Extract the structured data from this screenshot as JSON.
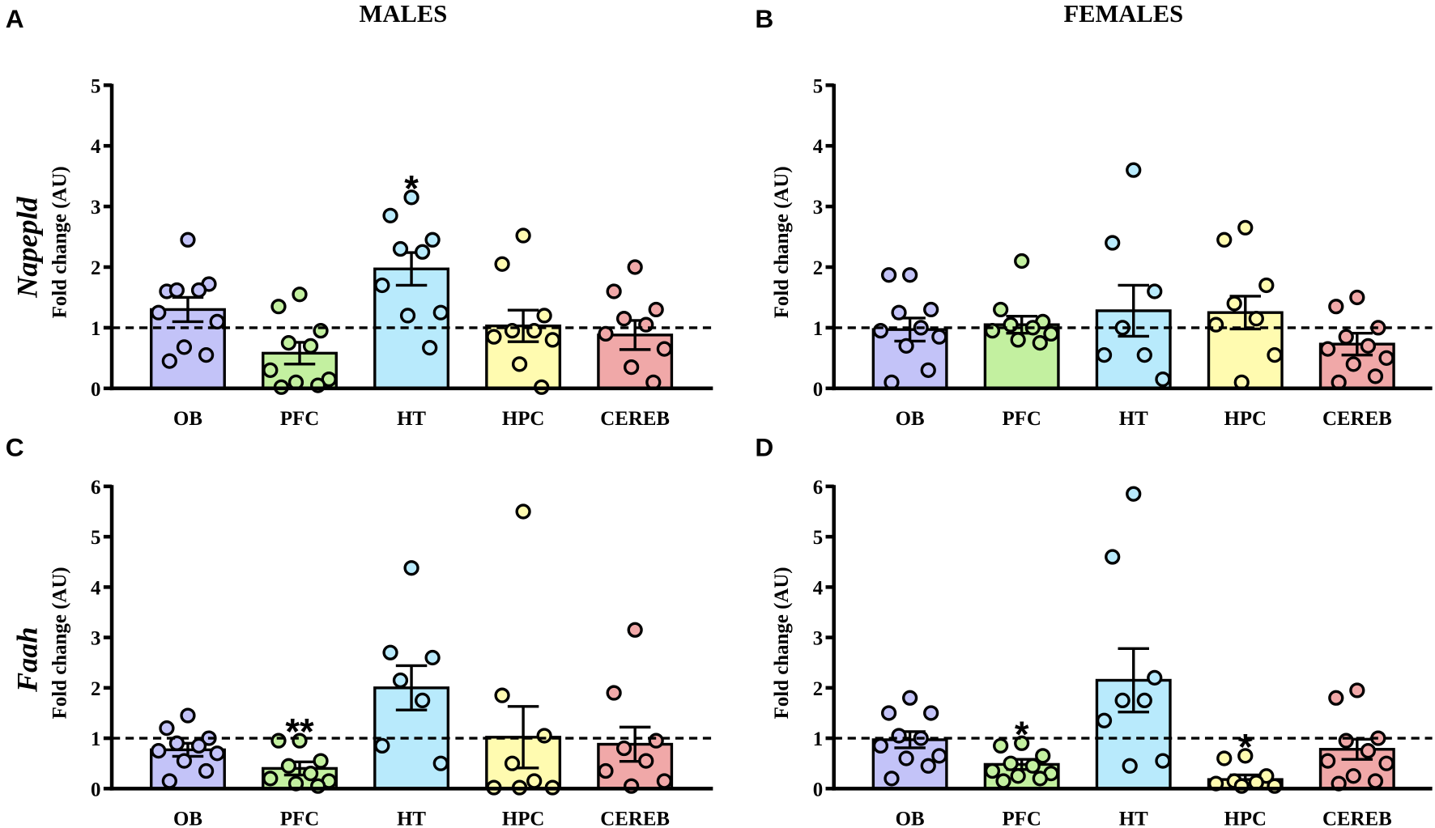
{
  "titles": {
    "males": "MALES",
    "females": "FEMALES"
  },
  "genes": {
    "row1": "Napepld",
    "row2": "Faah"
  },
  "colors": {
    "OB": "#c3c3f8",
    "PFC": "#c3f0a0",
    "HT": "#b8eafc",
    "HPC": "#fffbb0",
    "CEREB": "#f0a8a8"
  },
  "chart_data": [
    {
      "type": "bar",
      "panel": "A",
      "title": "MALES",
      "gene": "Napepld",
      "ylabel": "Fold change (AU)",
      "ylim": [
        0,
        5
      ],
      "yticks": [
        "0",
        "1",
        "2",
        "3",
        "4",
        "5"
      ],
      "reference_line": 1,
      "categories": [
        "OB",
        "PFC",
        "HT",
        "HPC",
        "CEREB"
      ],
      "means": [
        1.3,
        0.58,
        1.97,
        1.03,
        0.88
      ],
      "sem": [
        0.2,
        0.18,
        0.27,
        0.26,
        0.24
      ],
      "points": [
        [
          2.45,
          1.6,
          1.72,
          1.62,
          1.62,
          1.25,
          1.1,
          0.68,
          0.55,
          0.45
        ],
        [
          1.55,
          1.35,
          0.95,
          0.75,
          0.7,
          0.3,
          0.15,
          0.1,
          0.05,
          0.02
        ],
        [
          3.15,
          2.85,
          2.45,
          2.3,
          2.25,
          1.7,
          1.25,
          1.2,
          0.67
        ],
        [
          2.52,
          2.05,
          1.2,
          0.95,
          0.95,
          0.85,
          0.8,
          0.4,
          0.02
        ],
        [
          2.0,
          1.6,
          1.3,
          1.15,
          1.05,
          0.9,
          0.65,
          0.35,
          0.1
        ]
      ],
      "significance": [
        "",
        "",
        "*",
        "",
        ""
      ]
    },
    {
      "type": "bar",
      "panel": "B",
      "title": "FEMALES",
      "gene": "Napepld",
      "ylabel": "Fold change (AU)",
      "ylim": [
        0,
        5
      ],
      "yticks": [
        "0",
        "1",
        "2",
        "3",
        "4",
        "5"
      ],
      "reference_line": 1,
      "categories": [
        "OB",
        "PFC",
        "HT",
        "HPC",
        "CEREB"
      ],
      "means": [
        0.97,
        1.05,
        1.28,
        1.25,
        0.73
      ],
      "sem": [
        0.19,
        0.14,
        0.42,
        0.27,
        0.18
      ],
      "points": [
        [
          1.87,
          1.87,
          1.3,
          1.25,
          1.0,
          0.95,
          0.85,
          0.7,
          0.3,
          0.1
        ],
        [
          2.1,
          1.3,
          1.1,
          1.05,
          1.0,
          0.95,
          0.9,
          0.8,
          0.75
        ],
        [
          3.6,
          2.4,
          1.6,
          1.0,
          0.55,
          0.55,
          0.15
        ],
        [
          2.65,
          2.45,
          1.7,
          1.4,
          1.15,
          1.05,
          0.55,
          0.1
        ],
        [
          1.5,
          1.35,
          1.0,
          0.85,
          0.7,
          0.65,
          0.5,
          0.4,
          0.2,
          0.1
        ]
      ],
      "significance": [
        "",
        "",
        "",
        "",
        ""
      ]
    },
    {
      "type": "bar",
      "panel": "C",
      "title": "MALES",
      "gene": "Faah",
      "ylabel": "Fold change (AU)",
      "ylim": [
        0,
        6
      ],
      "yticks": [
        "0",
        "1",
        "2",
        "3",
        "4",
        "5",
        "6"
      ],
      "reference_line": 1,
      "categories": [
        "OB",
        "PFC",
        "HT",
        "HPC",
        "CEREB"
      ],
      "means": [
        0.77,
        0.4,
        2.0,
        1.02,
        0.88
      ],
      "sem": [
        0.13,
        0.13,
        0.44,
        0.61,
        0.34
      ],
      "points": [
        [
          1.45,
          1.2,
          1.0,
          0.9,
          0.85,
          0.75,
          0.7,
          0.55,
          0.35,
          0.15
        ],
        [
          0.95,
          0.95,
          0.55,
          0.45,
          0.3,
          0.2,
          0.15,
          0.1,
          0.05
        ],
        [
          4.38,
          2.7,
          2.6,
          2.15,
          1.75,
          0.85,
          0.5
        ],
        [
          5.5,
          1.85,
          1.05,
          0.5,
          0.15,
          0.02,
          0.02,
          0.02
        ],
        [
          3.15,
          1.9,
          0.95,
          0.8,
          0.55,
          0.35,
          0.15,
          0.05
        ]
      ],
      "significance": [
        "",
        "**",
        "",
        "",
        ""
      ]
    },
    {
      "type": "bar",
      "panel": "D",
      "title": "FEMALES",
      "gene": "Faah",
      "ylabel": "Fold change (AU)",
      "ylim": [
        0,
        6
      ],
      "yticks": [
        "0",
        "1",
        "2",
        "3",
        "4",
        "5",
        "6"
      ],
      "reference_line": 1,
      "categories": [
        "OB",
        "PFC",
        "HT",
        "HPC",
        "CEREB"
      ],
      "means": [
        0.97,
        0.48,
        2.15,
        0.18,
        0.78
      ],
      "sem": [
        0.16,
        0.1,
        0.63,
        0.09,
        0.2
      ],
      "points": [
        [
          1.8,
          1.5,
          1.5,
          1.05,
          1.0,
          0.85,
          0.65,
          0.6,
          0.45,
          0.2
        ],
        [
          0.9,
          0.85,
          0.65,
          0.5,
          0.45,
          0.35,
          0.3,
          0.25,
          0.2,
          0.15
        ],
        [
          5.85,
          4.6,
          2.2,
          1.75,
          1.75,
          1.35,
          0.55,
          0.45
        ],
        [
          0.65,
          0.6,
          0.25,
          0.15,
          0.12,
          0.1,
          0.05,
          0.05
        ],
        [
          1.95,
          1.8,
          1.0,
          0.95,
          0.75,
          0.55,
          0.5,
          0.25,
          0.15,
          0.1
        ]
      ],
      "significance": [
        "",
        "*",
        "",
        "*",
        ""
      ]
    }
  ]
}
